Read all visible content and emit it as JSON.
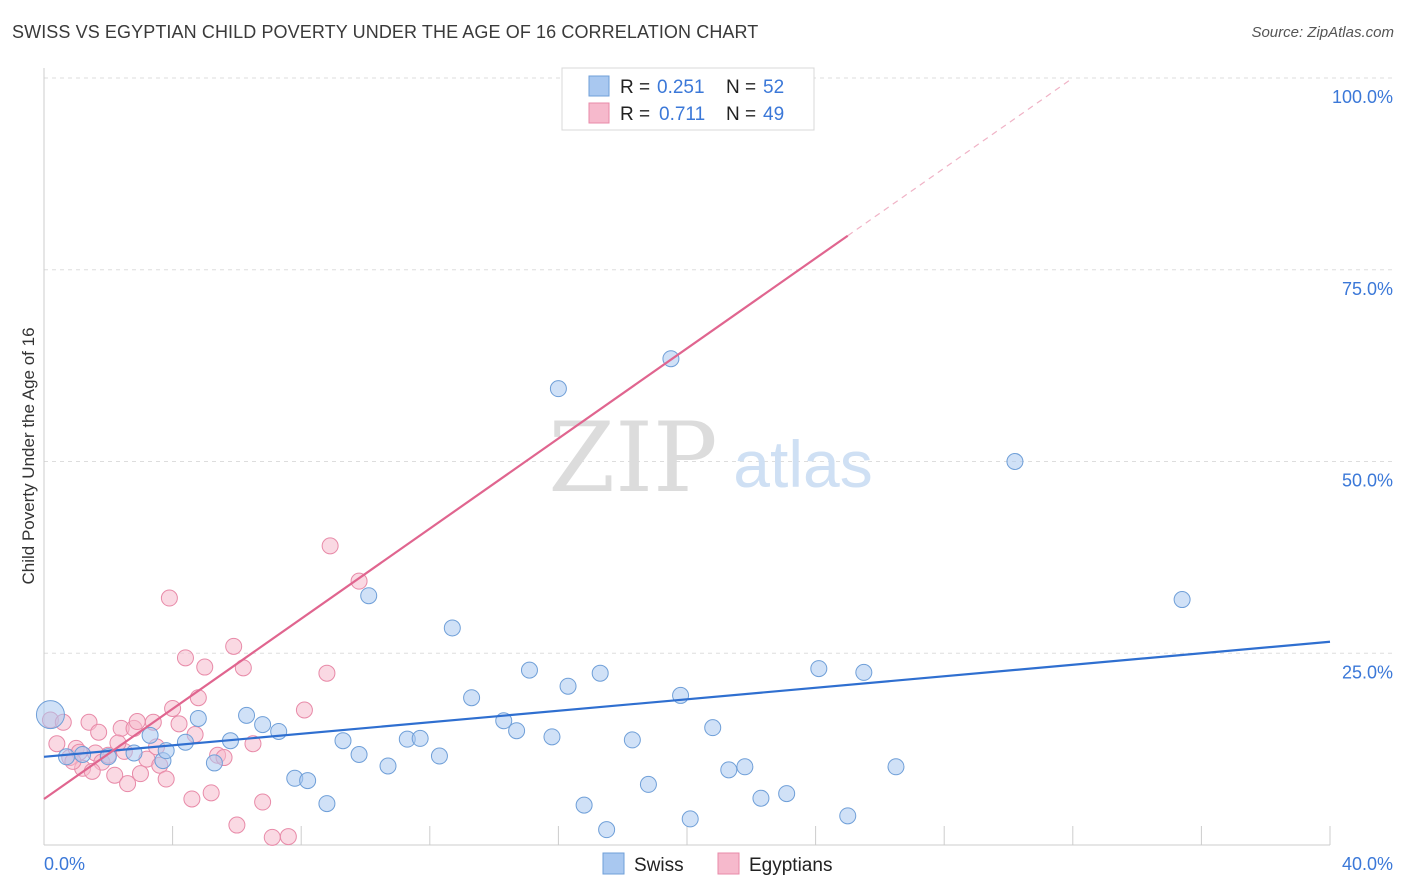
{
  "header": {
    "title": "SWISS VS EGYPTIAN CHILD POVERTY UNDER THE AGE OF 16 CORRELATION CHART",
    "source": "Source: ZipAtlas.com"
  },
  "watermark": {
    "zip": "ZIP",
    "atlas": "atlas"
  },
  "colors": {
    "swiss_fill": "#a9c8f0",
    "swiss_stroke": "#6f9fd8",
    "swiss_line": "#2f6fd0",
    "egypt_fill": "#f6b9cc",
    "egypt_stroke": "#e88aa8",
    "egypt_line": "#e0658f",
    "tick_label": "#3b78d8"
  },
  "chart_data": {
    "type": "scatter",
    "title": "SWISS VS EGYPTIAN CHILD POVERTY UNDER THE AGE OF 16 CORRELATION CHART",
    "xlabel": "",
    "ylabel": "Child Poverty Under the Age of 16",
    "xlim": [
      0,
      40
    ],
    "ylim": [
      0,
      100
    ],
    "x_tick_labels": {
      "min": "0.0%",
      "max": "40.0%"
    },
    "y_ticks": [
      {
        "value": 25,
        "label": "25.0%"
      },
      {
        "value": 50,
        "label": "50.0%"
      },
      {
        "value": 75,
        "label": "75.0%"
      },
      {
        "value": 100,
        "label": "100.0%"
      }
    ],
    "grid": true,
    "legend_placement": "top-center",
    "legend": [
      {
        "r_label": "R =",
        "r_value": "0.251",
        "n_label": "N =",
        "n_value": "52"
      },
      {
        "r_label": "R =",
        "r_value": "0.711",
        "n_label": "N =",
        "n_value": "49"
      }
    ],
    "bottom_legend": [
      "Swiss",
      "Egyptians"
    ],
    "series": [
      {
        "name": "Swiss",
        "trend": {
          "x0": 0,
          "y0": 11.5,
          "x1": 40,
          "y1": 26.5,
          "solid_until": 40
        },
        "points": [
          [
            0.2,
            17.0
          ],
          [
            0.7,
            11.5
          ],
          [
            1.2,
            11.8
          ],
          [
            2.0,
            11.5
          ],
          [
            2.8,
            12.0
          ],
          [
            3.3,
            14.3
          ],
          [
            3.7,
            11.0
          ],
          [
            3.8,
            12.3
          ],
          [
            4.4,
            13.4
          ],
          [
            4.8,
            16.5
          ],
          [
            5.3,
            10.7
          ],
          [
            5.8,
            13.6
          ],
          [
            6.3,
            16.9
          ],
          [
            6.8,
            15.7
          ],
          [
            7.3,
            14.8
          ],
          [
            7.8,
            8.7
          ],
          [
            8.2,
            8.4
          ],
          [
            8.8,
            5.4
          ],
          [
            9.3,
            13.6
          ],
          [
            9.8,
            11.8
          ],
          [
            10.1,
            32.5
          ],
          [
            10.7,
            10.3
          ],
          [
            11.3,
            13.8
          ],
          [
            11.7,
            13.9
          ],
          [
            12.3,
            11.6
          ],
          [
            12.7,
            28.3
          ],
          [
            13.3,
            19.2
          ],
          [
            14.3,
            16.2
          ],
          [
            14.7,
            14.9
          ],
          [
            15.1,
            22.8
          ],
          [
            15.8,
            14.1
          ],
          [
            16.3,
            20.7
          ],
          [
            16.0,
            59.5
          ],
          [
            16.8,
            5.2
          ],
          [
            17.3,
            22.4
          ],
          [
            17.5,
            2.0
          ],
          [
            18.3,
            13.7
          ],
          [
            18.8,
            7.9
          ],
          [
            19.5,
            63.4
          ],
          [
            19.8,
            19.5
          ],
          [
            20.1,
            3.4
          ],
          [
            20.8,
            15.3
          ],
          [
            21.3,
            9.8
          ],
          [
            21.8,
            10.2
          ],
          [
            22.3,
            6.1
          ],
          [
            23.1,
            6.7
          ],
          [
            24.1,
            23.0
          ],
          [
            25.0,
            3.8
          ],
          [
            25.5,
            22.5
          ],
          [
            26.5,
            10.2
          ],
          [
            30.2,
            50.0
          ],
          [
            35.4,
            32.0
          ]
        ]
      },
      {
        "name": "Egyptians",
        "trend": {
          "x0": 0,
          "y0": 6.0,
          "x1": 32,
          "y1": 100,
          "solid_until": 25
        },
        "points": [
          [
            0.2,
            16.3
          ],
          [
            0.4,
            13.2
          ],
          [
            0.6,
            16.0
          ],
          [
            0.8,
            11.4
          ],
          [
            1.0,
            12.6
          ],
          [
            1.2,
            10.0
          ],
          [
            1.4,
            16.0
          ],
          [
            1.6,
            12.0
          ],
          [
            1.8,
            10.8
          ],
          [
            2.0,
            11.7
          ],
          [
            2.2,
            9.1
          ],
          [
            2.4,
            15.2
          ],
          [
            2.6,
            8.0
          ],
          [
            2.8,
            15.2
          ],
          [
            3.0,
            9.3
          ],
          [
            3.2,
            11.2
          ],
          [
            3.4,
            16.0
          ],
          [
            3.6,
            10.4
          ],
          [
            3.8,
            8.6
          ],
          [
            3.9,
            32.2
          ],
          [
            4.0,
            17.8
          ],
          [
            4.2,
            15.8
          ],
          [
            4.4,
            24.4
          ],
          [
            4.6,
            6.0
          ],
          [
            4.8,
            19.2
          ],
          [
            5.0,
            23.2
          ],
          [
            5.2,
            6.8
          ],
          [
            5.4,
            11.7
          ],
          [
            5.6,
            11.4
          ],
          [
            5.9,
            25.9
          ],
          [
            6.0,
            2.6
          ],
          [
            6.2,
            23.1
          ],
          [
            6.5,
            13.2
          ],
          [
            6.8,
            5.6
          ],
          [
            7.1,
            1.0
          ],
          [
            7.6,
            1.1
          ],
          [
            8.1,
            17.6
          ],
          [
            8.8,
            22.4
          ],
          [
            8.9,
            39.0
          ],
          [
            9.8,
            34.4
          ],
          [
            2.9,
            16.1
          ],
          [
            1.1,
            12.1
          ],
          [
            1.5,
            9.6
          ],
          [
            2.5,
            12.2
          ],
          [
            3.5,
            12.8
          ],
          [
            4.7,
            14.4
          ],
          [
            0.9,
            10.9
          ],
          [
            1.7,
            14.7
          ],
          [
            2.3,
            13.3
          ]
        ]
      }
    ]
  }
}
